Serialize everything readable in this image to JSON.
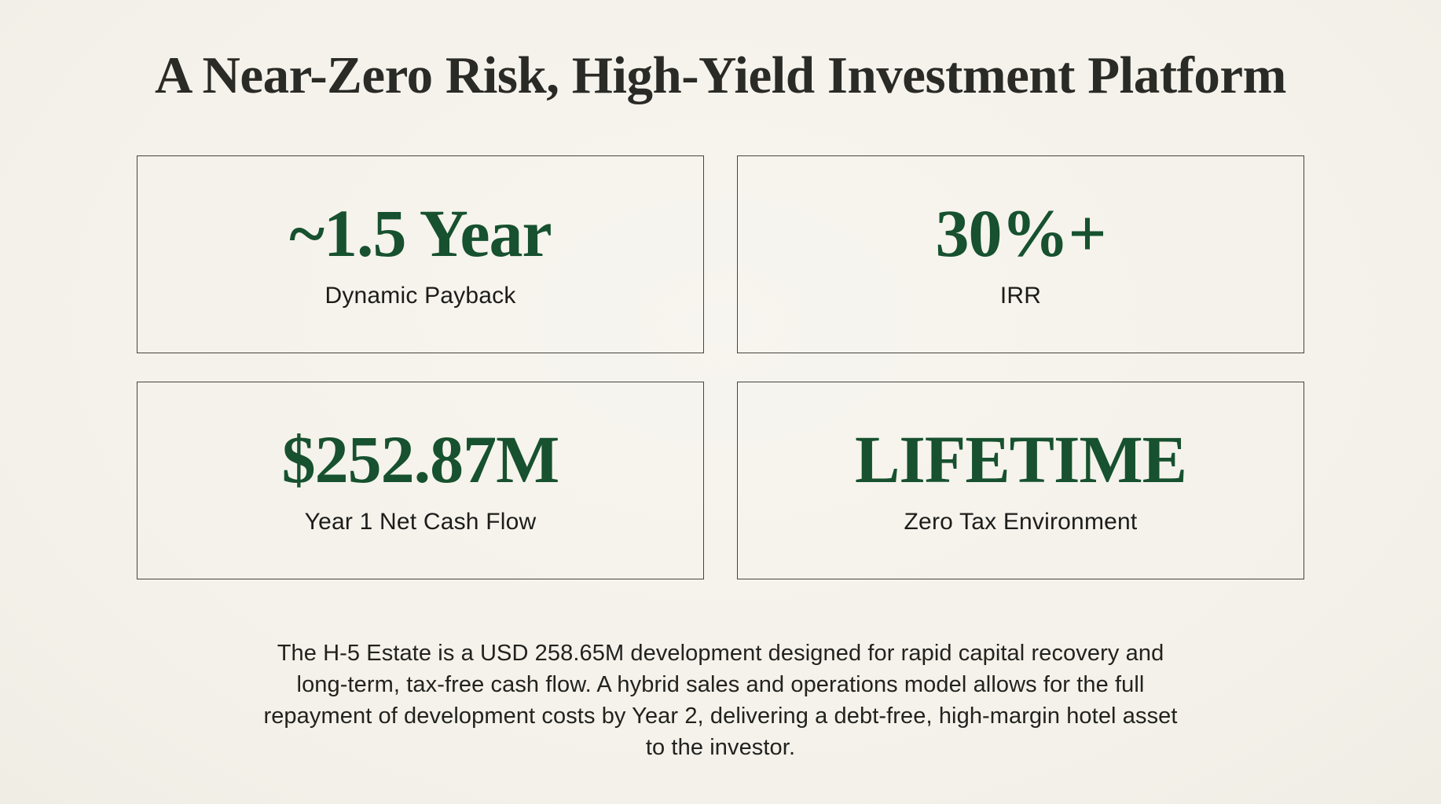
{
  "slide": {
    "title": "A Near-Zero Risk, High-Yield Investment Platform",
    "stats": [
      {
        "value": "~1.5 Year",
        "label": "Dynamic Payback"
      },
      {
        "value": "30%+",
        "label": "IRR"
      },
      {
        "value": "$252.87M",
        "label": "Year 1 Net Cash Flow"
      },
      {
        "value": "LIFETIME",
        "label": "Zero Tax Environment"
      }
    ],
    "description": "The H-5 Estate is a USD 258.65M development designed for rapid capital recovery and long-term, tax-free cash flow. A hybrid sales and operations model allows for the full repayment of development costs by Year 2, delivering a debt-free, high-margin hotel asset to the investor.",
    "colors": {
      "background": "#f5f3ec",
      "accent_green": "#17512f",
      "text_dark": "#2a2a26",
      "border": "#45443e"
    }
  }
}
